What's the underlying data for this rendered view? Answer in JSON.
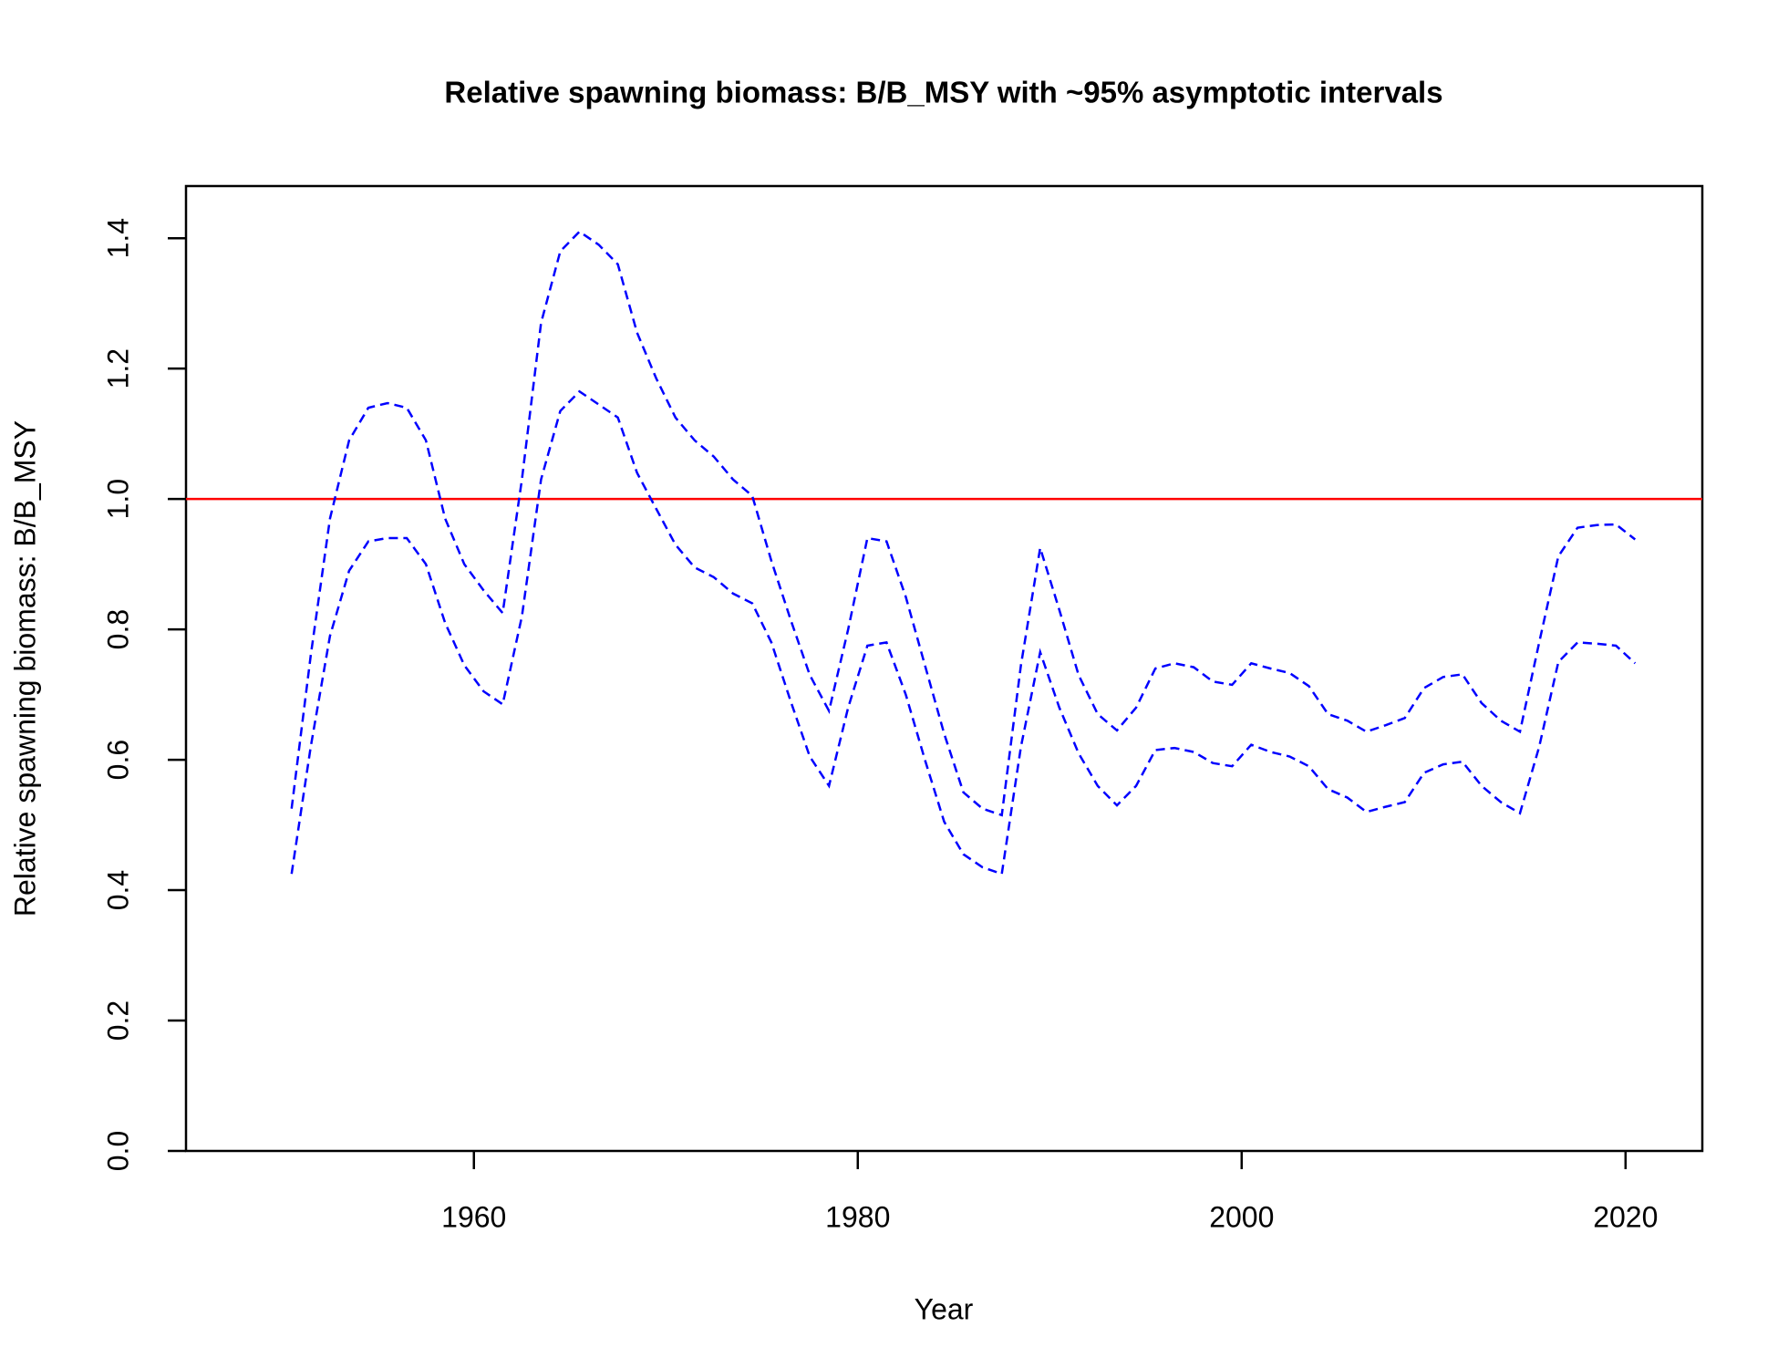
{
  "chart_data": {
    "type": "line",
    "title": "Relative spawning biomass: B/B_MSY with ~95% asymptotic intervals",
    "x_label": "Year",
    "y_label": "Relative spawning biomass: B/B_MSY",
    "x": [
      1950.5,
      1951.5,
      1952.5,
      1953.5,
      1954.5,
      1955.5,
      1956.5,
      1957.5,
      1958.5,
      1959.5,
      1960.5,
      1961.5,
      1962.5,
      1963.5,
      1964.5,
      1965.5,
      1966.5,
      1967.5,
      1968.5,
      1969.5,
      1970.5,
      1971.5,
      1972.5,
      1973.5,
      1974.5,
      1975.5,
      1976.5,
      1977.5,
      1978.5,
      1979.5,
      1980.5,
      1981.5,
      1982.5,
      1983.5,
      1984.5,
      1985.5,
      1986.5,
      1987.5,
      1988.5,
      1989.5,
      1990.5,
      1991.5,
      1992.5,
      1993.5,
      1994.5,
      1995.5,
      1996.5,
      1997.5,
      1998.5,
      1999.5,
      2000.5,
      2001.5,
      2002.5,
      2003.5,
      2004.5,
      2005.5,
      2006.5,
      2007.5,
      2008.5,
      2009.5,
      2010.5,
      2011.5,
      2012.5,
      2013.5,
      2014.5,
      2015.5,
      2016.5,
      2017.5,
      2018.5,
      2019.5,
      2020.5
    ],
    "series": [
      {
        "color": "#0000ff",
        "values": [
          0.525,
          0.76,
          0.97,
          1.09,
          1.14,
          1.147,
          1.14,
          1.09,
          0.97,
          0.9,
          0.86,
          0.825,
          1.03,
          1.27,
          1.38,
          1.41,
          1.39,
          1.36,
          1.255,
          1.185,
          1.125,
          1.09,
          1.065,
          1.03,
          1.005,
          0.905,
          0.815,
          0.73,
          0.675,
          0.8,
          0.94,
          0.935,
          0.85,
          0.745,
          0.64,
          0.55,
          0.525,
          0.515,
          0.745,
          0.925,
          0.83,
          0.73,
          0.67,
          0.645,
          0.68,
          0.74,
          0.748,
          0.742,
          0.72,
          0.715,
          0.748,
          0.74,
          0.733,
          0.713,
          0.67,
          0.66,
          0.643,
          0.653,
          0.664,
          0.71,
          0.727,
          0.731,
          0.687,
          0.66,
          0.643,
          0.78,
          0.912,
          0.956,
          0.96,
          0.961,
          0.938
        ]
      },
      {
        "color": "#0000ff",
        "values": [
          0.425,
          0.62,
          0.79,
          0.89,
          0.935,
          0.94,
          0.94,
          0.9,
          0.81,
          0.745,
          0.705,
          0.685,
          0.82,
          1.03,
          1.135,
          1.165,
          1.145,
          1.125,
          1.04,
          0.985,
          0.93,
          0.895,
          0.88,
          0.855,
          0.84,
          0.78,
          0.69,
          0.605,
          0.56,
          0.68,
          0.775,
          0.78,
          0.7,
          0.6,
          0.505,
          0.455,
          0.435,
          0.425,
          0.62,
          0.765,
          0.68,
          0.61,
          0.56,
          0.53,
          0.56,
          0.615,
          0.618,
          0.612,
          0.595,
          0.59,
          0.623,
          0.612,
          0.605,
          0.59,
          0.555,
          0.542,
          0.52,
          0.528,
          0.535,
          0.58,
          0.593,
          0.597,
          0.56,
          0.535,
          0.518,
          0.62,
          0.75,
          0.78,
          0.778,
          0.775,
          0.748
        ]
      }
    ],
    "dashed": true,
    "hline": {
      "value": 1,
      "color": "#ff0000"
    },
    "xlim": [
      1945,
      2024
    ],
    "ylim": [
      0,
      1.48
    ],
    "xticks": [
      1960,
      1980,
      2000,
      2020
    ],
    "yticks": [
      {
        "value": 0,
        "label": "0.0"
      },
      0.2,
      0.4,
      0.6,
      0.8,
      {
        "value": 1,
        "label": "1.0"
      },
      1.2,
      1.4
    ]
  }
}
